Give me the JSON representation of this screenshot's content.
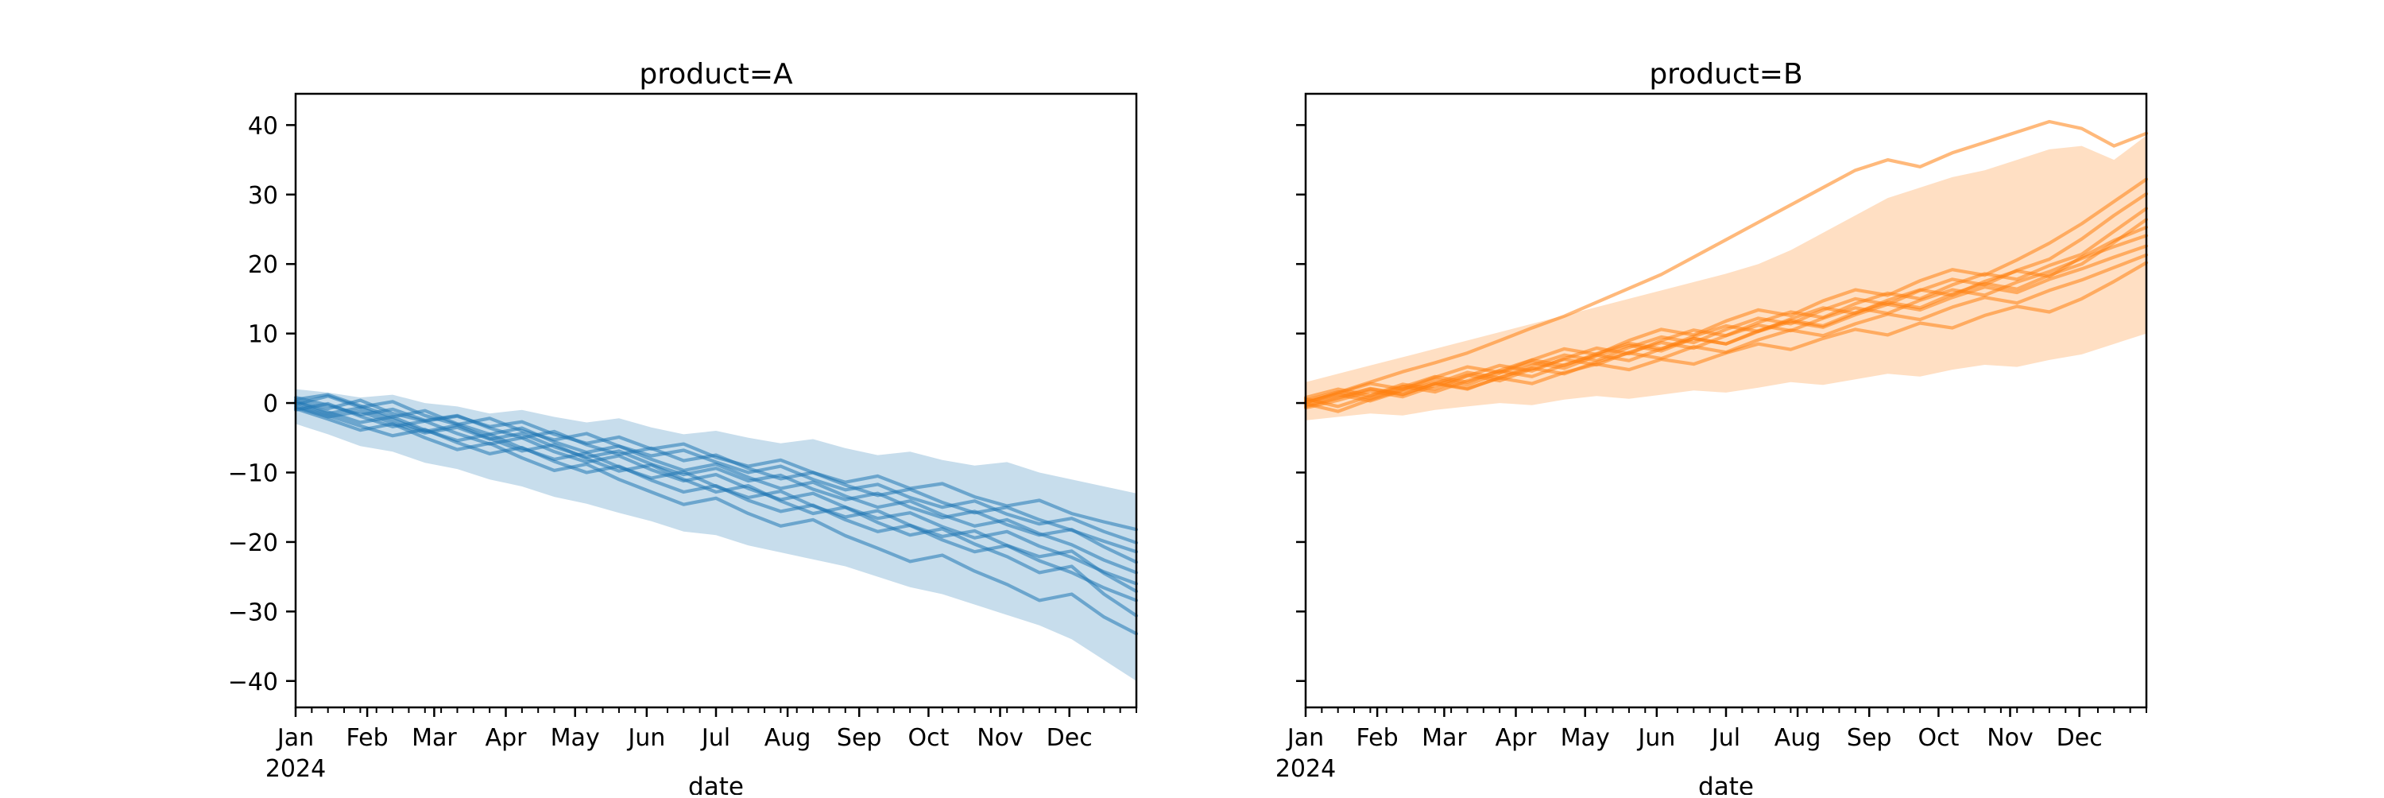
{
  "figure": {
    "background": "#ffffff",
    "panel_a_title": "product=A",
    "panel_b_title": "product=B",
    "xlabel": "date",
    "first_tick_year": "2024"
  },
  "chart_data": [
    {
      "type": "line",
      "title": "product=A",
      "xlabel": "date",
      "ylabel": "",
      "color": "#1f77b4",
      "band_alpha": 0.25,
      "line_alpha": 0.55,
      "x_tick_labels": [
        "Jan",
        "Feb",
        "Mar",
        "Apr",
        "May",
        "Jun",
        "Jul",
        "Aug",
        "Sep",
        "Oct",
        "Nov",
        "Dec"
      ],
      "x_tick_day_offsets": [
        0,
        31,
        60,
        91,
        121,
        152,
        182,
        213,
        244,
        274,
        305,
        335
      ],
      "x_minor_tick_every_days": 7,
      "x_range_days": [
        0,
        364
      ],
      "y_tick_values": [
        -40,
        -30,
        -20,
        -10,
        0,
        10,
        20,
        30,
        40
      ],
      "ylim": [
        -43.8,
        44.5
      ],
      "days_between_points": 14,
      "series": [
        [
          0.3,
          -0.8,
          0.4,
          -1.5,
          -2.6,
          -1.9,
          -3.4,
          -2.7,
          -4.5,
          -5.8,
          -4.9,
          -6.6,
          -5.9,
          -7.8,
          -9.1,
          -8.2,
          -10.0,
          -11.4,
          -10.5,
          -12.3,
          -11.6,
          -13.5,
          -14.8,
          -14.0,
          -15.9,
          -17.1,
          -18.2
        ],
        [
          -0.2,
          1.0,
          -0.6,
          0.2,
          -1.8,
          -3.1,
          -2.2,
          -4.0,
          -5.3,
          -4.4,
          -6.2,
          -7.6,
          -6.8,
          -8.5,
          -10.0,
          -9.1,
          -11.0,
          -12.5,
          -11.7,
          -13.6,
          -15.0,
          -14.1,
          -16.0,
          -17.4,
          -16.6,
          -18.5,
          -20.1
        ],
        [
          0.8,
          -0.3,
          -1.7,
          -0.9,
          -2.5,
          -1.8,
          -3.6,
          -5.0,
          -4.1,
          -6.0,
          -7.4,
          -6.5,
          -8.3,
          -7.5,
          -9.4,
          -10.9,
          -10.0,
          -11.8,
          -13.3,
          -12.4,
          -14.3,
          -15.8,
          -15.0,
          -16.8,
          -18.3,
          -19.9,
          -21.4
        ],
        [
          -0.6,
          -2.0,
          -1.2,
          -2.9,
          -4.3,
          -3.5,
          -5.2,
          -4.4,
          -6.3,
          -7.8,
          -6.9,
          -8.8,
          -10.3,
          -9.4,
          -11.2,
          -10.4,
          -12.4,
          -13.9,
          -13.0,
          -15.0,
          -16.5,
          -15.6,
          -17.5,
          -19.0,
          -18.2,
          -20.7,
          -22.9
        ],
        [
          0.5,
          1.2,
          -0.4,
          -2.0,
          -1.1,
          -3.0,
          -4.5,
          -3.6,
          -5.6,
          -7.1,
          -6.2,
          -8.1,
          -9.7,
          -8.8,
          -10.7,
          -12.3,
          -11.4,
          -13.4,
          -15.0,
          -14.1,
          -16.1,
          -17.7,
          -16.8,
          -18.8,
          -20.4,
          -22.6,
          -24.4
        ],
        [
          -1.0,
          -0.1,
          -1.9,
          -3.4,
          -2.6,
          -4.4,
          -5.9,
          -5.0,
          -7.0,
          -8.5,
          -7.6,
          -9.6,
          -11.2,
          -10.3,
          -12.3,
          -13.9,
          -13.0,
          -15.0,
          -16.6,
          -15.8,
          -17.8,
          -19.4,
          -18.5,
          -20.6,
          -22.2,
          -24.3,
          -26.0
        ],
        [
          0.2,
          -1.3,
          -2.8,
          -2.0,
          -3.9,
          -5.4,
          -4.5,
          -6.5,
          -8.1,
          -7.2,
          -9.2,
          -10.8,
          -9.9,
          -12.0,
          -13.6,
          -12.7,
          -14.8,
          -16.4,
          -15.5,
          -17.6,
          -19.2,
          -18.4,
          -20.5,
          -22.1,
          -21.3,
          -24.5,
          -27.1
        ],
        [
          -0.4,
          -1.8,
          -3.3,
          -4.7,
          -3.8,
          -5.7,
          -7.3,
          -6.4,
          -8.4,
          -10.0,
          -9.1,
          -11.1,
          -12.8,
          -11.9,
          -14.0,
          -15.6,
          -14.7,
          -16.8,
          -18.5,
          -17.6,
          -19.7,
          -21.4,
          -20.5,
          -22.7,
          -24.4,
          -26.6,
          -28.4
        ],
        [
          0.0,
          -1.5,
          -0.7,
          -2.4,
          -4.1,
          -3.2,
          -5.1,
          -6.9,
          -6.0,
          -8.0,
          -9.8,
          -8.9,
          -11.0,
          -12.8,
          -11.9,
          -14.1,
          -15.9,
          -15.0,
          -17.2,
          -19.0,
          -18.1,
          -20.3,
          -22.1,
          -24.4,
          -23.5,
          -27.5,
          -30.6
        ],
        [
          -0.8,
          -2.3,
          -3.9,
          -3.0,
          -5.0,
          -6.7,
          -5.8,
          -7.9,
          -9.7,
          -8.8,
          -11.0,
          -12.8,
          -14.6,
          -13.7,
          -15.9,
          -17.7,
          -16.8,
          -19.1,
          -20.9,
          -22.8,
          -21.9,
          -24.2,
          -26.1,
          -28.4,
          -27.5,
          -30.8,
          -33.2
        ]
      ],
      "band_low": [
        -3.0,
        -4.5,
        -6.2,
        -7.0,
        -8.6,
        -9.5,
        -11.0,
        -12.0,
        -13.5,
        -14.5,
        -15.8,
        -17.0,
        -18.5,
        -19.0,
        -20.5,
        -21.5,
        -22.5,
        -23.5,
        -25.0,
        -26.5,
        -27.5,
        -29.0,
        -30.5,
        -32.0,
        -34.0,
        -37.0,
        -40.0
      ],
      "band_high": [
        2.0,
        1.5,
        0.8,
        1.2,
        0.0,
        -0.5,
        -1.5,
        -1.0,
        -2.0,
        -2.8,
        -2.2,
        -3.5,
        -4.5,
        -4.0,
        -5.0,
        -5.8,
        -5.2,
        -6.5,
        -7.5,
        -7.0,
        -8.2,
        -9.0,
        -8.5,
        -10.0,
        -11.0,
        -12.0,
        -13.0
      ]
    },
    {
      "type": "line",
      "title": "product=B",
      "xlabel": "date",
      "ylabel": "",
      "color": "#ff7f0e",
      "band_alpha": 0.25,
      "line_alpha": 0.55,
      "x_tick_labels": [
        "Jan",
        "Feb",
        "Mar",
        "Apr",
        "May",
        "Jun",
        "Jul",
        "Aug",
        "Sep",
        "Oct",
        "Nov",
        "Dec"
      ],
      "x_tick_day_offsets": [
        0,
        31,
        60,
        91,
        121,
        152,
        182,
        213,
        244,
        274,
        305,
        335
      ],
      "x_minor_tick_every_days": 7,
      "x_range_days": [
        0,
        364
      ],
      "y_tick_values": [
        -40,
        -30,
        -20,
        -10,
        0,
        10,
        20,
        30,
        40
      ],
      "ylim": [
        -43.8,
        44.5
      ],
      "days_between_points": 14,
      "series": [
        [
          0.1,
          1.2,
          0.3,
          1.8,
          2.9,
          2.1,
          3.6,
          2.8,
          4.4,
          5.6,
          4.8,
          6.3,
          5.6,
          7.2,
          8.5,
          7.7,
          9.3,
          10.6,
          9.8,
          11.5,
          10.8,
          12.6,
          13.9,
          13.1,
          15.0,
          17.5,
          20.2
        ],
        [
          -0.3,
          0.9,
          2.1,
          1.3,
          2.8,
          2.0,
          3.7,
          5.0,
          4.2,
          5.9,
          7.2,
          6.4,
          8.1,
          7.3,
          9.1,
          10.5,
          9.7,
          11.4,
          12.8,
          12.0,
          13.8,
          15.2,
          14.4,
          16.2,
          17.7,
          19.5,
          21.3
        ],
        [
          0.6,
          -0.5,
          1.0,
          2.4,
          1.6,
          3.2,
          4.6,
          3.8,
          5.5,
          6.9,
          6.1,
          7.8,
          9.3,
          8.5,
          10.3,
          11.7,
          10.9,
          12.7,
          14.2,
          13.4,
          15.2,
          16.7,
          15.9,
          17.8,
          19.3,
          21.0,
          22.6
        ],
        [
          -0.7,
          0.4,
          1.7,
          0.9,
          2.5,
          4.0,
          3.2,
          4.9,
          6.3,
          5.5,
          7.3,
          8.7,
          7.9,
          9.7,
          11.2,
          10.4,
          12.2,
          13.7,
          12.9,
          14.8,
          16.3,
          15.5,
          17.4,
          18.9,
          20.8,
          22.5,
          24.1
        ],
        [
          0.4,
          1.6,
          0.7,
          2.3,
          3.8,
          3.0,
          4.7,
          6.2,
          5.4,
          7.1,
          8.6,
          7.8,
          9.6,
          11.1,
          10.3,
          12.1,
          13.7,
          12.9,
          14.8,
          16.3,
          15.5,
          17.5,
          19.0,
          18.2,
          21.0,
          23.4,
          25.3
        ],
        [
          -0.1,
          -1.2,
          0.5,
          1.9,
          3.4,
          2.6,
          4.3,
          5.8,
          5.0,
          6.8,
          8.3,
          7.5,
          9.3,
          8.5,
          10.4,
          11.9,
          11.1,
          13.0,
          14.5,
          13.7,
          15.7,
          17.2,
          16.4,
          18.4,
          20.0,
          23.1,
          26.4
        ],
        [
          0.8,
          2.0,
          1.1,
          2.7,
          2.0,
          3.9,
          5.4,
          4.6,
          6.4,
          7.9,
          7.1,
          9.0,
          10.5,
          9.7,
          11.6,
          13.1,
          12.3,
          14.3,
          15.8,
          15.0,
          17.0,
          18.6,
          17.8,
          19.8,
          21.4,
          24.7,
          28.0
        ],
        [
          -0.5,
          0.7,
          2.0,
          1.2,
          2.8,
          4.4,
          3.6,
          5.4,
          6.9,
          6.1,
          8.0,
          9.5,
          8.7,
          10.6,
          12.2,
          11.4,
          13.4,
          15.0,
          14.2,
          16.2,
          17.8,
          17.0,
          19.1,
          20.7,
          23.6,
          27.0,
          30.1
        ],
        [
          0.2,
          1.4,
          2.8,
          2.0,
          3.7,
          5.2,
          4.4,
          6.2,
          7.8,
          7.0,
          9.0,
          10.6,
          9.8,
          11.8,
          13.4,
          12.6,
          14.7,
          16.3,
          15.5,
          17.6,
          19.2,
          18.4,
          20.6,
          23.0,
          25.8,
          29.0,
          32.2
        ],
        [
          0.0,
          1.5,
          3.0,
          4.5,
          5.8,
          7.2,
          9.0,
          10.8,
          12.5,
          14.5,
          16.5,
          18.5,
          21.0,
          23.5,
          26.0,
          28.5,
          31.0,
          33.5,
          35.0,
          34.0,
          36.0,
          37.5,
          39.0,
          40.5,
          39.5,
          37.0,
          38.8
        ]
      ],
      "band_low": [
        -2.5,
        -2.0,
        -1.5,
        -1.8,
        -1.0,
        -0.5,
        0.0,
        -0.3,
        0.5,
        1.0,
        0.6,
        1.2,
        1.8,
        1.5,
        2.2,
        3.0,
        2.6,
        3.4,
        4.2,
        3.8,
        4.8,
        5.5,
        5.2,
        6.2,
        7.0,
        8.5,
        10.0
      ],
      "band_high": [
        3.0,
        4.2,
        5.4,
        6.6,
        7.8,
        9.0,
        10.2,
        11.4,
        12.6,
        13.8,
        15.0,
        16.2,
        17.4,
        18.6,
        20.0,
        22.0,
        24.5,
        27.0,
        29.5,
        31.0,
        32.5,
        33.5,
        35.0,
        36.5,
        37.0,
        35.0,
        38.5
      ]
    }
  ]
}
